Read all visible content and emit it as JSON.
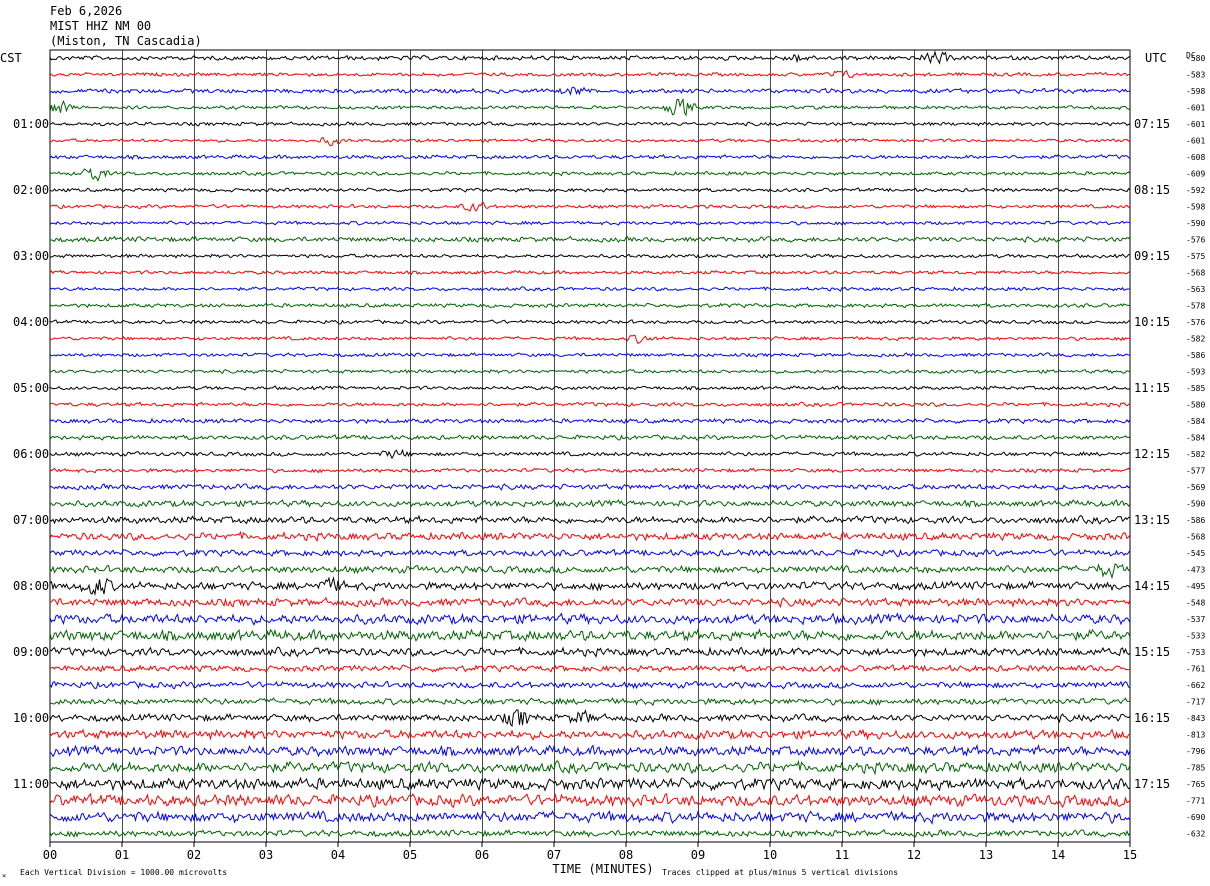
{
  "header": {
    "date": "Feb 6,2026",
    "station": "MIST HHZ NM 00",
    "location": "(Miston, TN Cascadia)"
  },
  "footer": {
    "scale_note": "Each Vertical Division = 1000.00 microvolts",
    "clip_note": "Traces clipped at plus/minus 5 vertical divisions",
    "corner_mark": "×"
  },
  "colors": {
    "trace_cycle": [
      "#000000",
      "#ff0000",
      "#0000ff",
      "#006400"
    ],
    "grid": "#000000"
  },
  "chart_data": {
    "type": "line",
    "xlabel": "TIME (MINUTES)",
    "left_axis_label": "CST",
    "right_axis_label": "UTC",
    "dc_label": "DC",
    "xlim": [
      0,
      15
    ],
    "x_ticks": [
      "00",
      "01",
      "02",
      "03",
      "04",
      "05",
      "06",
      "07",
      "08",
      "09",
      "10",
      "11",
      "12",
      "13",
      "14",
      "15"
    ],
    "left_hours": [
      "01:00",
      "02:00",
      "03:00",
      "04:00",
      "05:00",
      "06:00",
      "07:00",
      "08:00",
      "09:00",
      "10:00",
      "11:00"
    ],
    "right_hours": [
      "07:15",
      "08:15",
      "09:15",
      "10:15",
      "11:15",
      "12:15",
      "13:15",
      "14:15",
      "15:15",
      "16:15",
      "17:15"
    ],
    "traces_per_hour": 4,
    "dc_offsets": [
      -580,
      -583,
      -598,
      -601,
      -601,
      -601,
      -608,
      -609,
      -592,
      -598,
      -590,
      -576,
      -575,
      -568,
      -563,
      -578,
      -576,
      -582,
      -586,
      -593,
      -585,
      -580,
      -584,
      -584,
      -582,
      -577,
      -569,
      -590,
      -586,
      -568,
      -545,
      -473,
      -495,
      -548,
      -537,
      -533,
      -753,
      -761,
      -662,
      -717,
      -843,
      -813,
      -796,
      -785,
      -765,
      -771,
      -690,
      -632
    ],
    "trace_amplitude": [
      2.5,
      2,
      2.5,
      2,
      2,
      1.8,
      2.2,
      2,
      2,
      2,
      2,
      2.8,
      2,
      2,
      2,
      2.2,
      2,
      2,
      2,
      2,
      2,
      2.2,
      2.5,
      2.5,
      2.3,
      2.2,
      3,
      3.5,
      4,
      4.2,
      3.5,
      4,
      4.5,
      4.5,
      5.5,
      6,
      4.5,
      3.5,
      3.5,
      3.5,
      4,
      5,
      5.5,
      6,
      6.5,
      6.5,
      6,
      3.5
    ],
    "events": [
      {
        "trace": 0,
        "minute": 12.3,
        "amplitude": 7
      },
      {
        "trace": 0,
        "minute": 10.4,
        "amplitude": 4
      },
      {
        "trace": 1,
        "minute": 11.0,
        "amplitude": 4
      },
      {
        "trace": 2,
        "minute": 7.3,
        "amplitude": 4
      },
      {
        "trace": 3,
        "minute": 0.1,
        "amplitude": 9
      },
      {
        "trace": 3,
        "minute": 8.75,
        "amplitude": 12
      },
      {
        "trace": 5,
        "minute": 3.9,
        "amplitude": 4
      },
      {
        "trace": 7,
        "minute": 0.6,
        "amplitude": 9
      },
      {
        "trace": 9,
        "minute": 5.9,
        "amplitude": 5
      },
      {
        "trace": 17,
        "minute": 8.2,
        "amplitude": 4
      },
      {
        "trace": 24,
        "minute": 4.8,
        "amplitude": 4
      },
      {
        "trace": 31,
        "minute": 14.7,
        "amplitude": 8
      },
      {
        "trace": 32,
        "minute": 0.65,
        "amplitude": 11
      },
      {
        "trace": 32,
        "minute": 3.9,
        "amplitude": 7
      },
      {
        "trace": 40,
        "minute": 6.5,
        "amplitude": 10
      },
      {
        "trace": 40,
        "minute": 7.4,
        "amplitude": 6
      }
    ]
  }
}
